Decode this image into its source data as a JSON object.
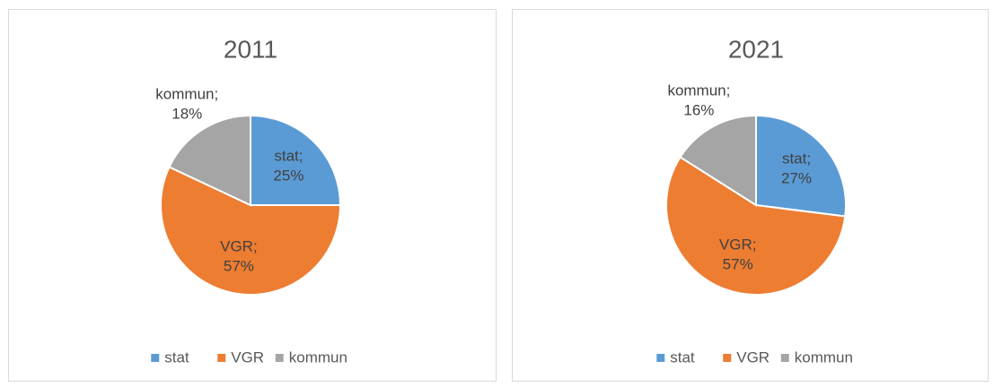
{
  "chart_data": [
    {
      "type": "pie",
      "title": "2011",
      "categories": [
        "stat",
        "VGR",
        "kommun"
      ],
      "values": [
        25,
        57,
        18
      ],
      "value_labels": [
        "stat; 25%",
        "VGR; 57%",
        "kommun; 18%"
      ],
      "colors": [
        "#5b9bd5",
        "#ed7d31",
        "#a5a5a5"
      ],
      "legend": "bottom"
    },
    {
      "type": "pie",
      "title": "2021",
      "categories": [
        "stat",
        "VGR",
        "kommun"
      ],
      "values": [
        27,
        57,
        16
      ],
      "value_labels": [
        "stat; 27%",
        "VGR; 57%",
        "kommun; 16%"
      ],
      "colors": [
        "#5b9bd5",
        "#ed7d31",
        "#a5a5a5"
      ],
      "legend": "bottom"
    }
  ]
}
